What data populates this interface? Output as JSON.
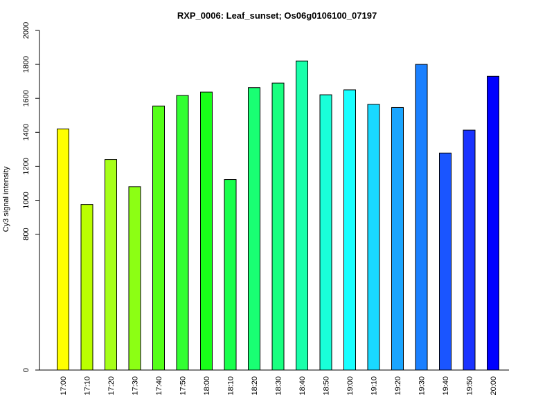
{
  "chart_data": {
    "type": "bar",
    "title": "RXP_0006: Leaf_sunset; Os06g0106100_07197",
    "xlabel": "",
    "ylabel": "Cy3 signal intensity",
    "ylim": [
      0,
      2000
    ],
    "ytick_labels": [
      "0",
      "800",
      "1000",
      "1200",
      "1400",
      "1600",
      "1800",
      "2000"
    ],
    "categories": [
      "17:00",
      "17:10",
      "17:20",
      "17:30",
      "17:40",
      "17:50",
      "18:00",
      "18:10",
      "18:20",
      "18:30",
      "18:40",
      "18:50",
      "19:00",
      "19:10",
      "19:20",
      "19:30",
      "19:40",
      "19:50",
      "20:00"
    ],
    "values": [
      1420,
      975,
      1240,
      1080,
      1555,
      1617,
      1637,
      1122,
      1663,
      1690,
      1820,
      1621,
      1650,
      1565,
      1546,
      1800,
      1278,
      1413,
      1730
    ],
    "colors": [
      "#ffff00",
      "#bbff00",
      "#a6ff19",
      "#8cff14",
      "#55ff19",
      "#33ff33",
      "#19ff19",
      "#19ff4c",
      "#19ff73",
      "#19ff80",
      "#19ffaa",
      "#19ffd9",
      "#19ffff",
      "#19d9ff",
      "#1aa5ff",
      "#1a80ff",
      "#1a55ff",
      "#1a33ff",
      "#0000ff"
    ],
    "grid": false,
    "legend": "none"
  }
}
